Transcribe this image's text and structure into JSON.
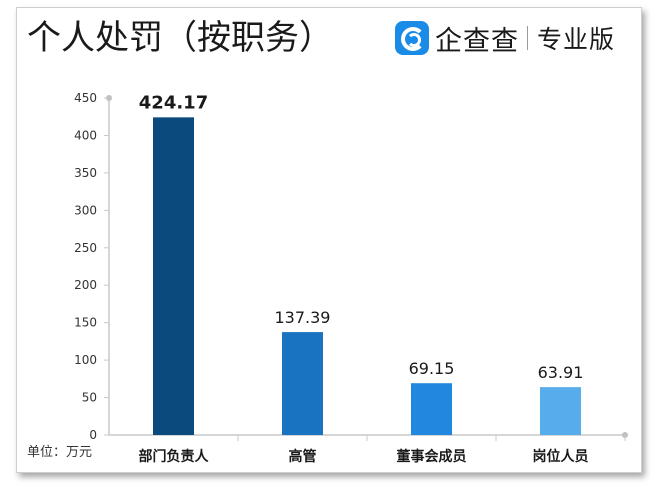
{
  "title": "个人处罚（按职务）",
  "brand": {
    "name": "企查查",
    "edition": "专业版"
  },
  "unit": "单位：万元",
  "chart_data": {
    "type": "bar",
    "categories": [
      "部门负责人",
      "高管",
      "董事会成员",
      "岗位人员"
    ],
    "values": [
      424.17,
      137.39,
      69.15,
      63.91
    ],
    "value_labels": [
      "424.17",
      "137.39",
      "69.15",
      "63.91"
    ],
    "title": "个人处罚（按职务）",
    "ylim": [
      0,
      450
    ],
    "yticks": [
      0,
      50,
      100,
      150,
      200,
      250,
      300,
      350,
      400,
      450
    ],
    "grid": false,
    "legend": "none",
    "bar_colors": [
      "#0b4a7d",
      "#1a73c0",
      "#2187df",
      "#57acec"
    ],
    "highlight_color": "#e8202a"
  }
}
